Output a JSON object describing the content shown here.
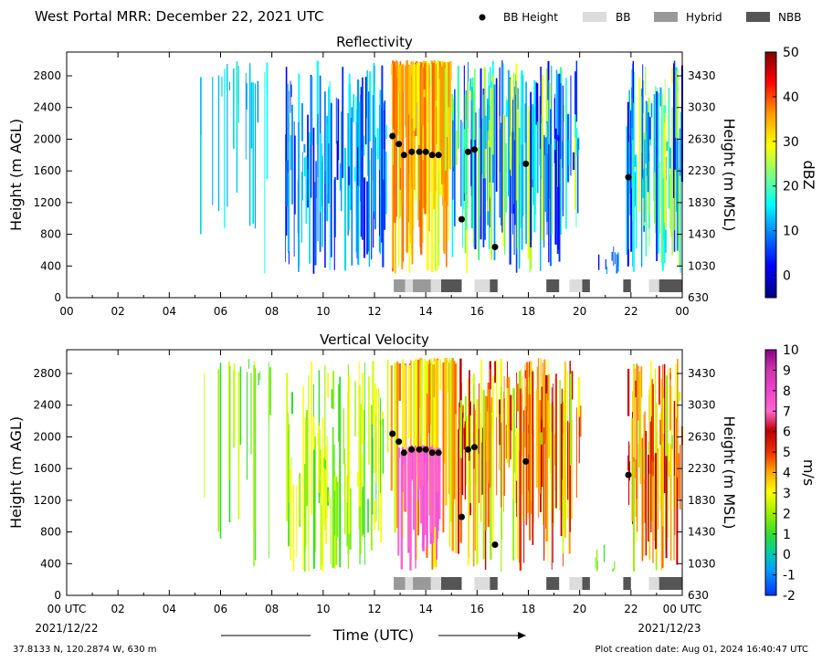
{
  "header": {
    "title": "West Portal MRR:  December 22, 2021 UTC",
    "legend": [
      {
        "label": "BB Height",
        "kind": "dot",
        "color": "#000000"
      },
      {
        "label": "BB",
        "kind": "box",
        "color": "#dcdcdc"
      },
      {
        "label": "Hybrid",
        "kind": "box",
        "color": "#999999"
      },
      {
        "label": "NBB",
        "kind": "box",
        "color": "#555555"
      }
    ]
  },
  "footer": {
    "location": "37.8133 N, 120.2874 W, 630 m",
    "created": "Plot creation date: Aug 01, 2024 16:40:47 UTC"
  },
  "chart_data": [
    {
      "type": "heatmap",
      "title": "Reflectivity",
      "ylabel": "Height (m AGL)",
      "ylabel_right": "Height (m MSL)",
      "x_ticks": [
        "00",
        "02",
        "04",
        "06",
        "08",
        "10",
        "12",
        "14",
        "16",
        "18",
        "20",
        "22",
        "00"
      ],
      "xlim_hours": [
        0,
        24
      ],
      "ylim": [
        0,
        3100
      ],
      "y_ticks": [
        0,
        400,
        800,
        1200,
        1600,
        2000,
        2400,
        2800
      ],
      "y_ticks_right": [
        "630",
        "1030",
        "1430",
        "1830",
        "2230",
        "2630",
        "3030",
        "3430"
      ],
      "colorbar": {
        "label": "dBZ",
        "min": -5,
        "max": 50,
        "ticks": [
          0,
          10,
          20,
          30,
          40,
          50
        ]
      },
      "bb_height": [
        {
          "hour": 12.7,
          "height": 2040
        },
        {
          "hour": 12.95,
          "height": 1940
        },
        {
          "hour": 13.15,
          "height": 1800
        },
        {
          "hour": 13.45,
          "height": 1840
        },
        {
          "hour": 13.75,
          "height": 1840
        },
        {
          "hour": 14.0,
          "height": 1840
        },
        {
          "hour": 14.25,
          "height": 1800
        },
        {
          "hour": 14.5,
          "height": 1800
        },
        {
          "hour": 15.4,
          "height": 990
        },
        {
          "hour": 15.65,
          "height": 1840
        },
        {
          "hour": 15.9,
          "height": 1870
        },
        {
          "hour": 16.7,
          "height": 640
        },
        {
          "hour": 17.9,
          "height": 1690
        },
        {
          "hour": 21.9,
          "height": 1520
        }
      ],
      "bb_type": [
        {
          "start": 12.75,
          "end": 13.2,
          "type": "Hybrid"
        },
        {
          "start": 13.2,
          "end": 13.5,
          "type": "BB"
        },
        {
          "start": 13.5,
          "end": 14.2,
          "type": "Hybrid"
        },
        {
          "start": 14.2,
          "end": 14.6,
          "type": "BB"
        },
        {
          "start": 14.6,
          "end": 15.4,
          "type": "NBB"
        },
        {
          "start": 15.9,
          "end": 16.5,
          "type": "BB"
        },
        {
          "start": 16.5,
          "end": 16.8,
          "type": "NBB"
        },
        {
          "start": 18.7,
          "end": 19.2,
          "type": "NBB"
        },
        {
          "start": 19.6,
          "end": 20.1,
          "type": "BB"
        },
        {
          "start": 20.1,
          "end": 20.4,
          "type": "NBB"
        },
        {
          "start": 21.7,
          "end": 22.0,
          "type": "NBB"
        },
        {
          "start": 22.7,
          "end": 23.1,
          "type": "BB"
        },
        {
          "start": 23.1,
          "end": 24.0,
          "type": "NBB"
        }
      ]
    },
    {
      "type": "heatmap",
      "title": "Vertical Velocity",
      "ylabel": "Height (m AGL)",
      "ylabel_right": "Height (m MSL)",
      "x_ticks": [
        "00 UTC",
        "02",
        "04",
        "06",
        "08",
        "10",
        "12",
        "14",
        "16",
        "18",
        "20",
        "22",
        "00 UTC"
      ],
      "x_dates": [
        "2021/12/22",
        "2021/12/23"
      ],
      "xlabel": "Time (UTC)",
      "xlim_hours": [
        0,
        24
      ],
      "ylim": [
        0,
        3100
      ],
      "y_ticks": [
        0,
        400,
        800,
        1200,
        1600,
        2000,
        2400,
        2800
      ],
      "y_ticks_right": [
        "630",
        "1030",
        "1430",
        "1830",
        "2230",
        "2630",
        "3030",
        "3430"
      ],
      "colorbar": {
        "label": "m/s",
        "min": -2,
        "max": 10,
        "ticks": [
          -2,
          -1,
          0,
          1,
          2,
          3,
          4,
          5,
          6,
          7,
          8,
          9,
          10
        ]
      },
      "bb_height": [
        {
          "hour": 12.7,
          "height": 2040
        },
        {
          "hour": 12.95,
          "height": 1940
        },
        {
          "hour": 13.15,
          "height": 1800
        },
        {
          "hour": 13.45,
          "height": 1840
        },
        {
          "hour": 13.75,
          "height": 1840
        },
        {
          "hour": 14.0,
          "height": 1840
        },
        {
          "hour": 14.25,
          "height": 1800
        },
        {
          "hour": 14.5,
          "height": 1800
        },
        {
          "hour": 15.4,
          "height": 990
        },
        {
          "hour": 15.65,
          "height": 1840
        },
        {
          "hour": 15.9,
          "height": 1870
        },
        {
          "hour": 16.7,
          "height": 640
        },
        {
          "hour": 17.9,
          "height": 1690
        },
        {
          "hour": 21.9,
          "height": 1520
        }
      ],
      "bb_type": [
        {
          "start": 12.75,
          "end": 13.2,
          "type": "Hybrid"
        },
        {
          "start": 13.2,
          "end": 13.5,
          "type": "BB"
        },
        {
          "start": 13.5,
          "end": 14.2,
          "type": "Hybrid"
        },
        {
          "start": 14.2,
          "end": 14.6,
          "type": "BB"
        },
        {
          "start": 14.6,
          "end": 15.4,
          "type": "NBB"
        },
        {
          "start": 15.9,
          "end": 16.5,
          "type": "BB"
        },
        {
          "start": 16.5,
          "end": 16.8,
          "type": "NBB"
        },
        {
          "start": 18.7,
          "end": 19.2,
          "type": "NBB"
        },
        {
          "start": 19.6,
          "end": 20.1,
          "type": "BB"
        },
        {
          "start": 20.1,
          "end": 20.4,
          "type": "NBB"
        },
        {
          "start": 21.7,
          "end": 22.0,
          "type": "NBB"
        },
        {
          "start": 22.7,
          "end": 23.1,
          "type": "BB"
        },
        {
          "start": 23.1,
          "end": 24.0,
          "type": "NBB"
        }
      ]
    }
  ]
}
